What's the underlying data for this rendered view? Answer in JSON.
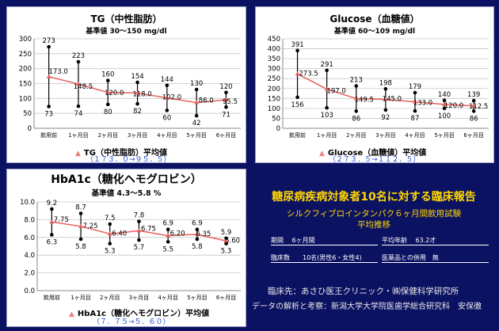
{
  "chart_data": [
    {
      "type": "line",
      "title": "TG（中性脂肪）",
      "subtitle": "基準値 30～150 mg/dl",
      "categories": [
        "飲用前",
        "1ヶ月目",
        "2ヶ月目",
        "3ヶ月目",
        "4ヶ月目",
        "5ヶ月目",
        "6ヶ月目"
      ],
      "ylim": [
        0,
        300
      ],
      "yticks": [
        "0",
        "50",
        "100",
        "150",
        "200",
        "250",
        "300"
      ],
      "max": [
        273,
        223,
        160,
        154,
        144,
        130,
        120
      ],
      "min": [
        73,
        74,
        80,
        82,
        60,
        42,
        71
      ],
      "mean": [
        173.0,
        148.5,
        120.0,
        118.0,
        102.0,
        86.0,
        95.5
      ],
      "max_labels": [
        "273",
        "223",
        "160",
        "154",
        "144",
        "130",
        "120"
      ],
      "min_labels": [
        "73",
        "74",
        "80",
        "82",
        "60",
        "42",
        "71"
      ],
      "mean_labels": [
        "173.0",
        "148.5",
        "120.0",
        "118.0",
        "102.0",
        "86.0",
        "95.5"
      ],
      "legend": "TG（中性脂肪）平均値",
      "range_text": "（１７３．０→９５．５）"
    },
    {
      "type": "line",
      "title": "Glucose（血糖値）",
      "subtitle": "基準値 60～109 mg/dl",
      "categories": [
        "飲用前",
        "1ヶ月目",
        "2ヶ月目",
        "3ヶ月目",
        "4ヶ月目",
        "5ヶ月目",
        "6ヶ月目"
      ],
      "ylim": [
        0,
        450
      ],
      "yticks": [
        "0",
        "50",
        "100",
        "150",
        "200",
        "250",
        "300",
        "350",
        "400",
        "450"
      ],
      "max": [
        391,
        291,
        213,
        198,
        179,
        140,
        139
      ],
      "min": [
        156,
        103,
        86,
        92,
        87,
        100,
        86
      ],
      "mean": [
        273.5,
        197.0,
        149.5,
        145.0,
        133.0,
        120.0,
        112.5
      ],
      "max_labels": [
        "391",
        "291",
        "213",
        "198",
        "179",
        "140",
        "139"
      ],
      "min_labels": [
        "156",
        "103",
        "86",
        "92",
        "87",
        "100",
        "86"
      ],
      "mean_labels": [
        "273.5",
        "197.0",
        "149.5",
        "145.0",
        "133.0",
        "120.0",
        "112.5"
      ],
      "legend": "Glucose（血糖値）平均値",
      "range_text": "（２７３．５→１１２．５）"
    },
    {
      "type": "line",
      "title": "HbA1c（糖化ヘモグロビン）",
      "subtitle": "基準値 4.3～5.8 %",
      "categories": [
        "飲用前",
        "1ヶ月目",
        "2ヶ月目",
        "3ヶ月目",
        "4ヶ月目",
        "5ヶ月目",
        "6ヶ月目"
      ],
      "ylim": [
        0,
        10
      ],
      "yticks": [
        "0.0",
        "2.0",
        "4.0",
        "6.0",
        "8.0",
        "10.0"
      ],
      "max": [
        9.2,
        8.7,
        7.5,
        7.8,
        6.9,
        6.9,
        5.9
      ],
      "min": [
        6.3,
        5.8,
        5.3,
        5.7,
        5.5,
        5.8,
        5.3
      ],
      "mean": [
        7.75,
        7.25,
        6.4,
        6.75,
        6.2,
        6.35,
        5.6
      ],
      "max_labels": [
        "9.2",
        "8.7",
        "7.5",
        "7.8",
        "6.9",
        "6.9",
        "5.9"
      ],
      "min_labels": [
        "6.3",
        "5.8",
        "5.3",
        "5.7",
        "5.5",
        "5.8",
        "5.3"
      ],
      "mean_labels": [
        "7.75",
        "7.25",
        "6.40",
        "6.75",
        "6.20",
        "6.35",
        "5.60"
      ],
      "legend": "HbA1c（糖化ヘモグロビン）平均値",
      "range_text": "（７．７５→５．６０）"
    }
  ],
  "colors": {
    "background": "#0c1262",
    "mean_line": "#e8615c",
    "range_text": "#1a4fd0",
    "heading": "#ffd700"
  },
  "report": {
    "title": "糖尿病疾病対象者10名に対する臨床報告",
    "subtitle1": "シルクフィブロインタンパク６ヶ月間飲用試験",
    "subtitle2": "平均推移",
    "period": "期間　 6ヶ月間",
    "age": "平均年齢　 63.2才",
    "count": "臨床数　　10名(男性6・女性4)",
    "drugs": "医薬品との併用　無",
    "clinic": "臨床先：あさひ医王クリニック・㈱保健科学研究所",
    "analysis": "データの解析と考察：新潟大学大学院医歯学総合研究科　安保徹"
  }
}
